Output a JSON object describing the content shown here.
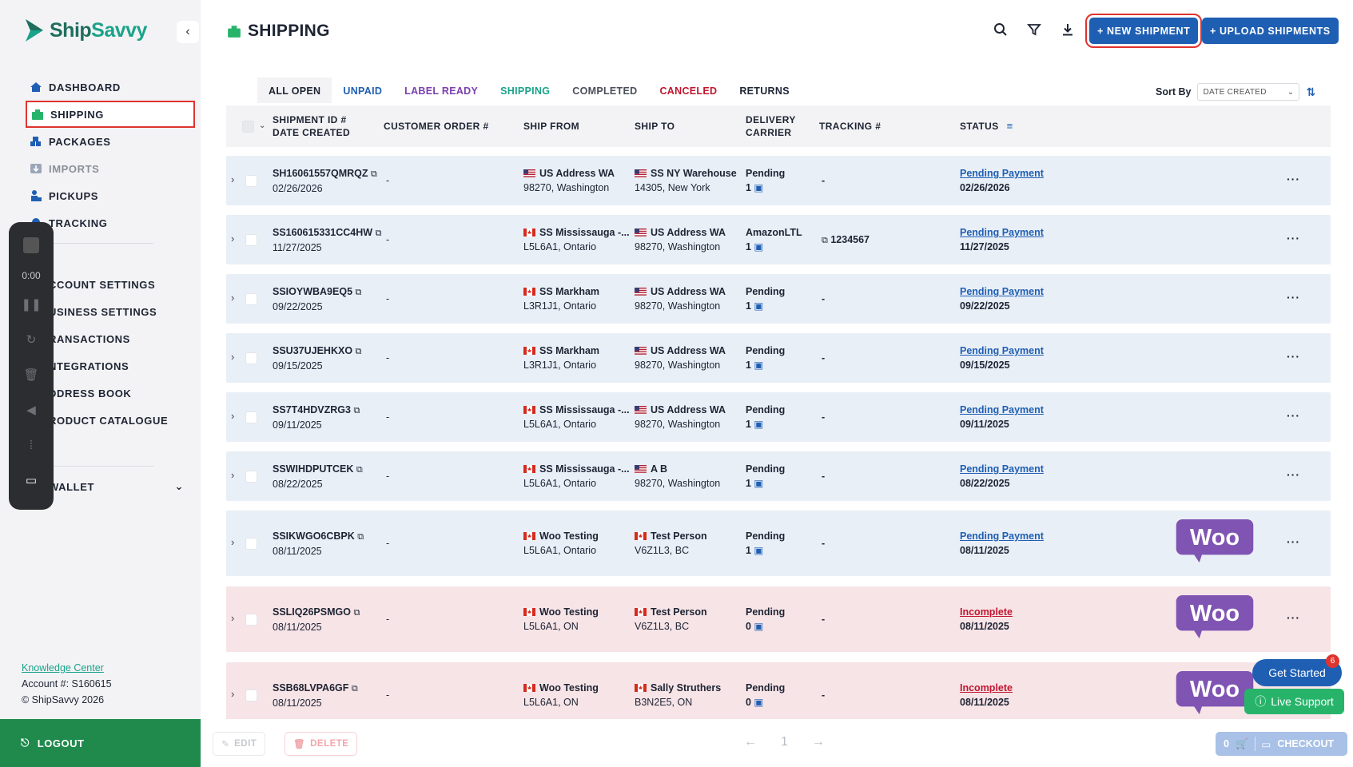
{
  "brand": {
    "name_a": "Ship",
    "name_b": "Savvy"
  },
  "sidebar": {
    "items": [
      {
        "label": "DASHBOARD",
        "icon": "home-icon"
      },
      {
        "label": "SHIPPING",
        "icon": "shipping-icon"
      },
      {
        "label": "PACKAGES",
        "icon": "packages-icon"
      },
      {
        "label": "IMPORTS",
        "icon": "imports-icon"
      },
      {
        "label": "PICKUPS",
        "icon": "pickups-icon"
      },
      {
        "label": "TRACKING",
        "icon": "tracking-icon"
      }
    ],
    "settings": [
      {
        "label": "CCOUNT SETTINGS"
      },
      {
        "label": "USINESS SETTINGS"
      },
      {
        "label": "RANSACTIONS"
      },
      {
        "label": "NTEGRATIONS"
      },
      {
        "label": "DDRESS BOOK"
      },
      {
        "label": "RODUCT CATALOGUE"
      }
    ],
    "wallet": "WALLET",
    "knowledge_center": "Knowledge Center",
    "account": "Account #: S160615",
    "copyright": "© ShipSavvy 2026",
    "logout": "LOGOUT"
  },
  "recorder": {
    "time": "0:00"
  },
  "header": {
    "title": "SHIPPING",
    "new_shipment": "+ NEW SHIPMENT",
    "upload_shipments": "+ UPLOAD SHIPMENTS"
  },
  "tabs": [
    {
      "label": "ALL OPEN",
      "color": "#1d2433"
    },
    {
      "label": "UNPAID",
      "color": "#1f5fb3"
    },
    {
      "label": "LABEL READY",
      "color": "#7a3fb0"
    },
    {
      "label": "SHIPPING",
      "color": "#1aa38a"
    },
    {
      "label": "COMPLETED",
      "color": "#4a4f59"
    },
    {
      "label": "CANCELED",
      "color": "#c0162f"
    },
    {
      "label": "RETURNS",
      "color": "#1d2433"
    }
  ],
  "sort": {
    "label": "Sort By",
    "value": "DATE CREATED"
  },
  "columns": {
    "shipment_id": "SHIPMENT ID #",
    "date_created": "DATE CREATED",
    "customer_order": "CUSTOMER ORDER #",
    "ship_from": "SHIP FROM",
    "ship_to": "SHIP TO",
    "delivery": "DELIVERY",
    "carrier": "CARRIER",
    "tracking": "TRACKING #",
    "status": "STATUS"
  },
  "rows": [
    {
      "id": "SH16061557QMRQZ",
      "date": "02/26/2026",
      "order": "-",
      "from_flag": "us",
      "from_name": "US Address WA",
      "from_addr": "98270, Washington",
      "to_flag": "us",
      "to_name": "SS NY Warehouse",
      "to_addr": "14305, New York",
      "carrier": "Pending",
      "pkgs": "1",
      "tracking": "-",
      "status": "Pending Payment",
      "status_date": "02/26/2026",
      "tone": "blue",
      "woo": false
    },
    {
      "id": "SS160615331CC4HW",
      "date": "11/27/2025",
      "order": "-",
      "from_flag": "ca",
      "from_name": "SS Mississauga -...",
      "from_addr": "L5L6A1, Ontario",
      "to_flag": "us",
      "to_name": "US Address WA",
      "to_addr": "98270, Washington",
      "carrier": "AmazonLTL",
      "pkgs": "1",
      "tracking": "1234567",
      "status": "Pending Payment",
      "status_date": "11/27/2025",
      "tone": "blue",
      "woo": false
    },
    {
      "id": "SSIOYWBA9EQ5",
      "date": "09/22/2025",
      "order": "-",
      "from_flag": "ca",
      "from_name": "SS Markham",
      "from_addr": "L3R1J1, Ontario",
      "to_flag": "us",
      "to_name": "US Address WA",
      "to_addr": "98270, Washington",
      "carrier": "Pending",
      "pkgs": "1",
      "tracking": "-",
      "status": "Pending Payment",
      "status_date": "09/22/2025",
      "tone": "blue",
      "woo": false
    },
    {
      "id": "SSU37UJEHKXO",
      "date": "09/15/2025",
      "order": "-",
      "from_flag": "ca",
      "from_name": "SS Markham",
      "from_addr": "L3R1J1, Ontario",
      "to_flag": "us",
      "to_name": "US Address WA",
      "to_addr": "98270, Washington",
      "carrier": "Pending",
      "pkgs": "1",
      "tracking": "-",
      "status": "Pending Payment",
      "status_date": "09/15/2025",
      "tone": "blue",
      "woo": false
    },
    {
      "id": "SS7T4HDVZRG3",
      "date": "09/11/2025",
      "order": "-",
      "from_flag": "ca",
      "from_name": "SS Mississauga -...",
      "from_addr": "L5L6A1, Ontario",
      "to_flag": "us",
      "to_name": "US Address WA",
      "to_addr": "98270, Washington",
      "carrier": "Pending",
      "pkgs": "1",
      "tracking": "-",
      "status": "Pending Payment",
      "status_date": "09/11/2025",
      "tone": "blue",
      "woo": false
    },
    {
      "id": "SSWIHDPUTCEK",
      "date": "08/22/2025",
      "order": "-",
      "from_flag": "ca",
      "from_name": "SS Mississauga -...",
      "from_addr": "L5L6A1, Ontario",
      "to_flag": "us",
      "to_name": "A B",
      "to_addr": "98270, Washington",
      "carrier": "Pending",
      "pkgs": "1",
      "tracking": "-",
      "status": "Pending Payment",
      "status_date": "08/22/2025",
      "tone": "blue",
      "woo": false
    },
    {
      "id": "SSIKWGO6CBPK",
      "date": "08/11/2025",
      "order": "-",
      "from_flag": "ca",
      "from_name": "Woo Testing",
      "from_addr": "L5L6A1, Ontario",
      "to_flag": "ca",
      "to_name": "Test Person",
      "to_addr": "V6Z1L3, BC",
      "carrier": "Pending",
      "pkgs": "1",
      "tracking": "-",
      "status": "Pending Payment",
      "status_date": "08/11/2025",
      "tone": "blue",
      "woo": true
    },
    {
      "id": "SSLIQ26PSMGO",
      "date": "08/11/2025",
      "order": "-",
      "from_flag": "ca",
      "from_name": "Woo Testing",
      "from_addr": "L5L6A1, ON",
      "to_flag": "ca",
      "to_name": "Test Person",
      "to_addr": "V6Z1L3, BC",
      "carrier": "Pending",
      "pkgs": "0",
      "tracking": "-",
      "status": "Incomplete",
      "status_date": "08/11/2025",
      "tone": "pink",
      "woo": true
    },
    {
      "id": "SSB68LVPA6GF",
      "date": "08/11/2025",
      "order": "-",
      "from_flag": "ca",
      "from_name": "Woo Testing",
      "from_addr": "L5L6A1, ON",
      "to_flag": "ca",
      "to_name": "Sally Struthers",
      "to_addr": "B3N2E5, ON",
      "carrier": "Pending",
      "pkgs": "0",
      "tracking": "-",
      "status": "Incomplete",
      "status_date": "08/11/2025",
      "tone": "pink",
      "woo": true
    }
  ],
  "woo_label": "Woo",
  "footer": {
    "edit": "EDIT",
    "delete": "DELETE",
    "page": "1",
    "cart_count": "0",
    "checkout": "CHECKOUT"
  },
  "widgets": {
    "get_started": "Get Started",
    "badge": "6",
    "live_support": "Live Support"
  }
}
